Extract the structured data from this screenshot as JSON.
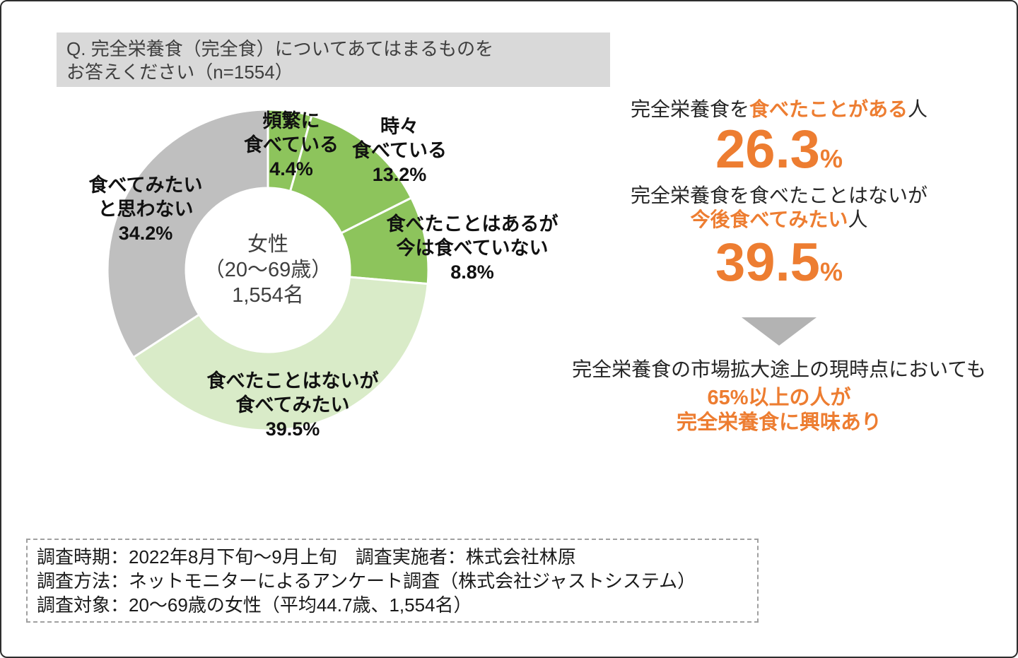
{
  "header": {
    "line1": "Q. 完全栄養食（完全食）についてあてはまるものを",
    "line2": "お答えください（n=1554）"
  },
  "chart_data": {
    "type": "pie",
    "subtype": "donut",
    "start_angle_deg": 0,
    "direction": "clockwise",
    "unit": "%",
    "categories": [
      "頻繁に食べている",
      "時々食べている",
      "食べたことはあるが今は食べていない",
      "食べたことはないが食べてみたい",
      "食べてみたいと思わない"
    ],
    "values": [
      4.4,
      13.2,
      8.8,
      39.5,
      34.2
    ],
    "colors": [
      "#8DC45C",
      "#8DC45C",
      "#8DC45C",
      "#D9EBC8",
      "#BFBFBF"
    ],
    "center_label": {
      "line1": "女性",
      "line2": "（20～69歳）",
      "line3": "1,554名"
    }
  },
  "donut_labels": [
    {
      "lines": [
        "頻繁に",
        "食べている",
        "4.4%"
      ]
    },
    {
      "lines": [
        "時々",
        "食べている",
        "13.2%"
      ]
    },
    {
      "lines": [
        "食べたことはあるが",
        "今は食べていない",
        "8.8%"
      ]
    },
    {
      "lines": [
        "食べたことはないが",
        "食べてみたい",
        "39.5%"
      ]
    },
    {
      "lines": [
        "食べてみたい",
        "と思わない",
        "34.2%"
      ]
    }
  ],
  "right_panel": {
    "stat1": {
      "pre": "完全栄養食を",
      "highlight": "食べたことがある",
      "post": "人",
      "value": "26.3",
      "unit": "%"
    },
    "stat2": {
      "line1": "完全栄養食を食べたことはないが",
      "highlight": "今後食べてみたい",
      "post": "人",
      "value": "39.5",
      "unit": "%"
    },
    "conclusion": {
      "line": "完全栄養食の市場拡大途上の現時点においても",
      "highlight1": "65%以上の人が",
      "highlight2": "完全栄養食に興味あり"
    }
  },
  "footnote": {
    "lines": [
      "調査時期：2022年8月下旬～9月上旬　調査実施者：株式会社林原",
      "調査方法：ネットモニターによるアンケート調査（株式会社ジャストシステム）",
      "調査対象：20～69歳の女性（平均44.7歳、1,554名）"
    ]
  },
  "colors": {
    "accent_orange": "#ED7D31",
    "segment_green": "#8DC45C",
    "segment_light_green": "#D9EBC8",
    "segment_gray": "#BFBFBF",
    "arrow_gray": "#B3B3B3",
    "header_bg": "#D9D9D9"
  }
}
